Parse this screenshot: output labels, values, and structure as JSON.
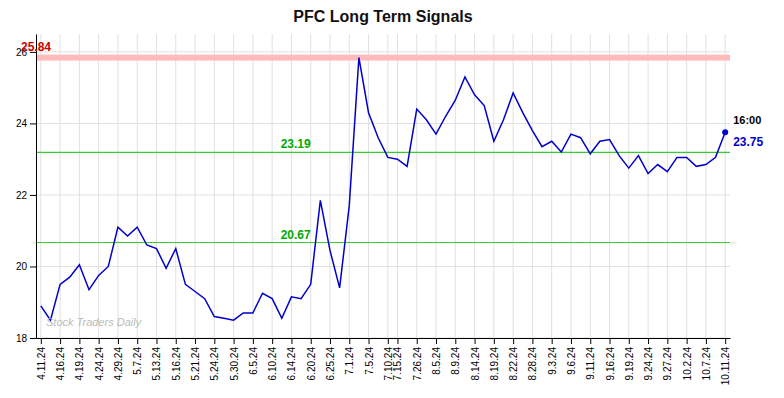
{
  "chart_data": {
    "type": "line",
    "title": "PFC Long Term Signals",
    "categories": [
      "4.11.24",
      null,
      "4.16.24",
      null,
      "4.19.24",
      null,
      "4.24.24",
      null,
      "4.29.24",
      null,
      "5.7.24",
      null,
      "5.13.24",
      null,
      "5.16.24",
      null,
      "5.21.24",
      null,
      "5.24.24",
      null,
      "5.30.24",
      null,
      "6.5.24",
      null,
      "6.10.24",
      null,
      "6.14.24",
      null,
      "6.20.24",
      null,
      "6.25.24",
      null,
      "7.1.24",
      null,
      "7.5.24",
      null,
      "7.10.24",
      "7.15.24",
      null,
      "7.26.24",
      null,
      "8.5.24",
      null,
      "8.9.24",
      null,
      "8.14.24",
      null,
      "8.19.24",
      null,
      "8.22.24",
      null,
      "8.28.24",
      null,
      "9.3.24",
      null,
      "9.6.24",
      null,
      "9.11.24",
      null,
      "9.16.24",
      null,
      "9.19.24",
      null,
      "9.24.24",
      null,
      "9.27.24",
      null,
      "10.2.24",
      null,
      "10.7.24",
      null,
      "10.11.24"
    ],
    "values": [
      18.9,
      18.5,
      19.5,
      19.7,
      20.05,
      19.35,
      19.75,
      20.0,
      21.1,
      20.85,
      21.1,
      20.6,
      20.5,
      19.95,
      20.5,
      19.5,
      19.3,
      19.1,
      18.6,
      18.55,
      18.5,
      18.7,
      18.7,
      19.25,
      19.1,
      18.55,
      19.15,
      19.1,
      19.5,
      21.85,
      20.45,
      19.4,
      21.7,
      25.84,
      24.3,
      23.6,
      23.05,
      23.0,
      22.8,
      24.4,
      24.1,
      23.7,
      24.2,
      24.65,
      25.3,
      24.8,
      24.5,
      23.5,
      24.1,
      24.85,
      24.3,
      23.8,
      23.35,
      23.5,
      23.2,
      23.7,
      23.6,
      23.15,
      23.5,
      23.55,
      23.1,
      22.75,
      23.1,
      22.6,
      22.85,
      22.65,
      23.05,
      23.05,
      22.8,
      22.85,
      23.05,
      23.75
    ],
    "color": "#0000cc",
    "ylim": [
      18,
      26.5
    ],
    "yticks": [
      18,
      20,
      22,
      24,
      26
    ],
    "grid": true,
    "reference_lines": [
      {
        "value": 25.84,
        "label": "25.84",
        "color": "#ffbbbb",
        "label_color": "#cc0000"
      },
      {
        "value": 23.19,
        "label": "23.19",
        "color": "#33cc33",
        "label_color": "#00aa00"
      },
      {
        "value": 20.67,
        "label": "20.67",
        "color": "#33cc33",
        "label_color": "#00aa00"
      }
    ],
    "annotations": [
      {
        "text": "16:00",
        "color": "#000000"
      },
      {
        "text": "23.75",
        "color": "#0000cc"
      }
    ],
    "watermark": {
      "text": "Stock Traders Daily",
      "color": "#bbbbbb"
    }
  }
}
